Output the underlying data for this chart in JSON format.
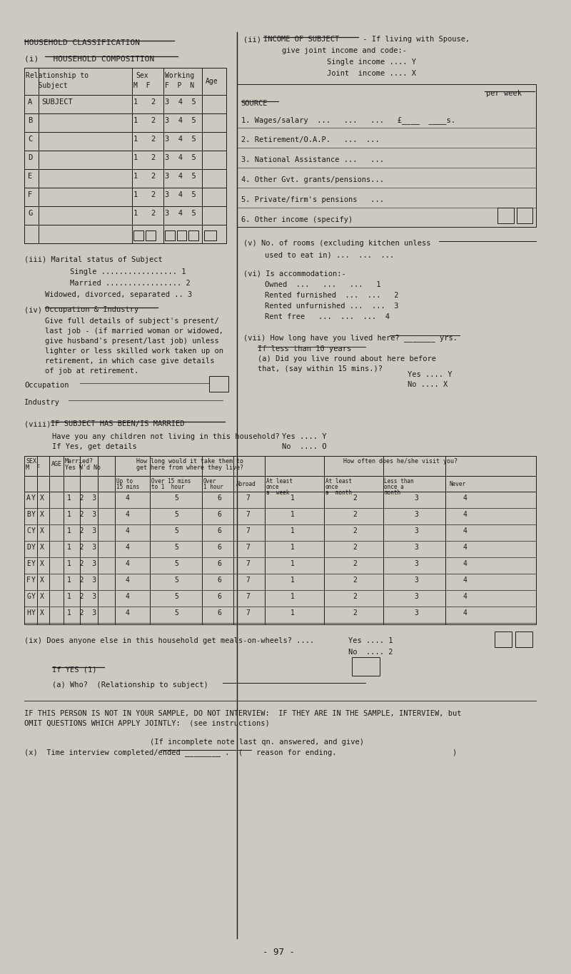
{
  "bg_color": "#cdc9c1",
  "text_color": "#1a1a1a",
  "title": "HOUSEHOLD CLASSIFICATION",
  "page_number": "- 97 -",
  "section_i_title": "(i)   HOUSEHOLD COMPOSITION",
  "section_ii_line1": "(ii)  INCOME OF SUBJECT - If living with Spouse,",
  "section_ii_line2": "give joint income and code:-",
  "section_ii_single": "Single income .... Y",
  "section_ii_joint": "Joint  income .... X",
  "income_source_label": "SOURCE",
  "income_per_week": "per week",
  "income_sources": [
    "1. Wages/salary  ...   ...   ...   £____  ____s.",
    "2. Retirement/O.A.P.   ...  ...",
    "3. National Assistance ...   ...",
    "4. Other Gvt. grants/pensions...",
    "5. Private/firm's pensions   ...",
    "6. Other income (specify)"
  ],
  "household_rows": [
    "A",
    "B",
    "C",
    "D",
    "E",
    "F",
    "G"
  ],
  "section_iii_title": "(iii) Marital status of Subject",
  "marital_options": [
    "Single ................. 1",
    "Married ................. 2",
    "Widowed, divorced, separated .. 3"
  ],
  "section_iv_title": "(iv) Occupation & Industry",
  "section_iv_text": [
    "Give full details of subject's present/",
    "last job - (if married woman or widowed,",
    "give husband's present/last job) unless",
    "lighter or less skilled work taken up on",
    "retirement, in which case give details",
    "of job at retirement."
  ],
  "occupation_label": "Occupation",
  "industry_label": "Industry",
  "section_v_line1": "(v) No. of rooms (excluding kitchen unless",
  "section_v_line2": "used to eat in) ...  ...  ...",
  "section_vi_title": "(vi) Is accommodation:-",
  "accommodation_options": [
    "Owned  ...   ...   ...   1",
    "Rented furnished  ...  ...   2",
    "Rented unfurnished ...  ...  3",
    "Rent free   ...  ...  ...  4"
  ],
  "section_vii_line1": "(vii) How long have you lived here? _______ yrs.",
  "section_vii_line2": "If less than 10 years",
  "section_vii_line3": "(a) Did you live round about here before",
  "section_vii_line4": "that, (say within 15 mins.)?",
  "section_vii_yes": "Yes .... Y",
  "section_vii_no": "No .... X",
  "section_viii_title": "(viii) IF SUBJECT HAS BEEN/IS MARRIED",
  "section_viii_q1": "Have you any children not living in this household?",
  "section_viii_yes": "Yes .... Y",
  "section_viii_no": "No  .... O",
  "section_viii_sub": "If Yes, get details",
  "married_rows": [
    "A",
    "B",
    "C",
    "D",
    "E",
    "F",
    "G",
    "H"
  ],
  "section_ix_line1": "(ix) Does anyone else in this household get meals-on-wheels? ....",
  "section_ix_yes": "Yes .... 1",
  "section_ix_no": "No  .... 2",
  "section_ix_sub1": "If YES (1)",
  "section_ix_sub2": "(a) Who?  (Relationship to subject)",
  "footer_text1": "IF THIS PERSON IS NOT IN YOUR SAMPLE, DO NOT INTERVIEW:  IF THEY ARE IN THE SAMPLE, INTERVIEW, but",
  "footer_text2": "OMIT QUESTIONS WHICH APPLY JOINTLY:  (see instructions)",
  "footer_text3": "(If incomplete note last qn. answered, and give)",
  "footer_text4": "(x)  Time interview completed/ended ________ .  (   reason for ending.                          )"
}
